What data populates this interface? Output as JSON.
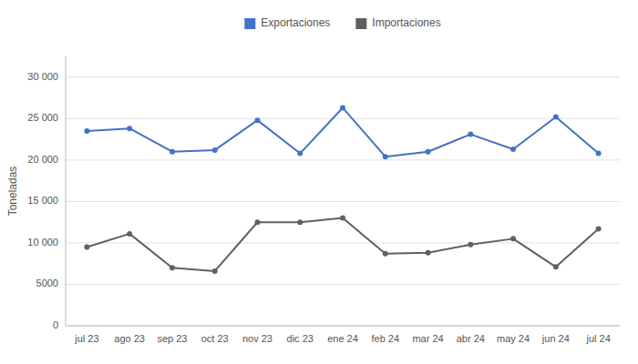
{
  "chart_data": {
    "type": "line",
    "y_label": "Toneladas",
    "categories": [
      "jul 23",
      "ago 23",
      "sep 23",
      "oct 23",
      "nov 23",
      "dic 23",
      "ene 24",
      "feb 24",
      "mar 24",
      "abr 24",
      "may 24",
      "jun 24",
      "jul 24"
    ],
    "series": [
      {
        "name": "Exportaciones",
        "color": "#4472C4",
        "marker": "circle",
        "values": [
          23500,
          23800,
          21000,
          21200,
          24800,
          20800,
          26300,
          20400,
          21000,
          23100,
          21300,
          25200,
          20800
        ]
      },
      {
        "name": "Importaciones",
        "color": "#606060",
        "marker": "circle",
        "values": [
          9500,
          11100,
          7000,
          6600,
          12500,
          12500,
          13000,
          8700,
          8800,
          9800,
          10500,
          7100,
          11700
        ]
      }
    ],
    "ylim": [
      0,
      32500
    ],
    "yticks": [
      0,
      5000,
      {
        "value": 10000,
        "label": "10 000"
      },
      {
        "value": 15000,
        "label": "15 000"
      },
      {
        "value": 20000,
        "label": "20 000"
      },
      {
        "value": 25000,
        "label": "25 000"
      },
      {
        "value": 30000,
        "label": "30 000"
      }
    ],
    "grid": true,
    "legend": "top"
  }
}
